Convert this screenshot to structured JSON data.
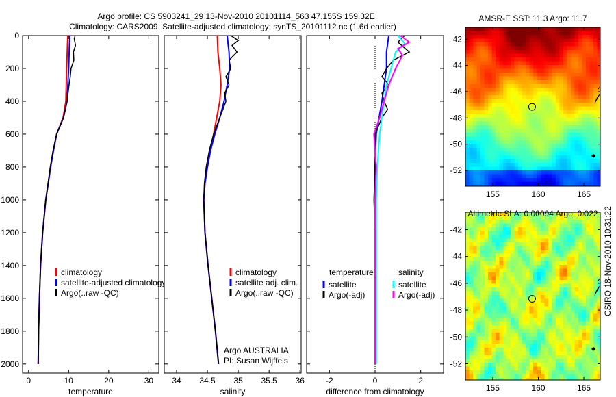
{
  "title": {
    "line1": "Argo profile: CS 5903241_29 13-Nov-2010 20101114_563 47.155S 159.32E",
    "line2": "Climatology: CARS2009. Satellite-adjusted climatology: synTS_20101112.nc (1.6d earlier)"
  },
  "side_label": "CSIRO 18-Nov-2010 10:31:22",
  "chart_data": [
    {
      "type": "line",
      "xlabel": "temperature",
      "xlim": [
        -1.5,
        32.5
      ],
      "ylim": [
        2055,
        0
      ],
      "xticks": [
        "0",
        "10",
        "20",
        "30"
      ],
      "xtick_values": [
        0,
        10,
        20,
        30
      ],
      "yticks": [
        "0",
        "200",
        "400",
        "600",
        "800",
        "1000",
        "1200",
        "1400",
        "1600",
        "1800",
        "2000"
      ],
      "legend": [
        "climatology",
        "satellite-adjusted climatology",
        "Argo(..raw -QC)"
      ],
      "series": [
        {
          "name": "climatology",
          "color": "#ff0000",
          "depth": [
            0,
            50,
            200,
            400,
            500,
            600,
            700,
            800,
            1000,
            1200,
            1400,
            1600,
            1800,
            2000
          ],
          "values": [
            9.8,
            9.7,
            9.5,
            9.3,
            8.6,
            7.0,
            6.2,
            5.5,
            4.3,
            3.5,
            3.0,
            2.7,
            2.5,
            2.4
          ]
        },
        {
          "name": "satellite-adjusted climatology",
          "color": "#0000ff",
          "depth": [
            0,
            50,
            200,
            400,
            500,
            600,
            700,
            800,
            1000,
            1200,
            1400,
            1600,
            1800,
            2000
          ],
          "values": [
            10.3,
            10.2,
            10.0,
            9.6,
            8.7,
            7.0,
            6.2,
            5.5,
            4.3,
            3.5,
            3.0,
            2.7,
            2.5,
            2.4
          ]
        },
        {
          "name": "Argo(..raw -QC)",
          "color": "#000000",
          "depth": [
            0,
            20,
            60,
            100,
            150,
            200,
            250,
            300,
            400,
            500,
            600,
            700,
            800,
            1000,
            1200,
            1400,
            1600,
            1800,
            2000
          ],
          "values": [
            11.6,
            11.4,
            11.7,
            11.2,
            11.3,
            10.6,
            10.4,
            10.1,
            9.6,
            8.7,
            7.0,
            6.1,
            5.4,
            4.3,
            3.5,
            3.0,
            2.7,
            2.5,
            2.4
          ]
        }
      ]
    },
    {
      "type": "line",
      "xlabel": "salinity",
      "xlim": [
        33.8,
        36.02
      ],
      "ylim": [
        2055,
        0
      ],
      "xticks": [
        "34",
        "34.5",
        "35",
        "35.5",
        "36"
      ],
      "xtick_values": [
        34,
        34.5,
        35,
        35.5,
        36
      ],
      "legend": [
        "climatology",
        "satellite adj. clim.",
        "Argo(..raw -QC)"
      ],
      "annotation": [
        "Argo AUSTRALIA",
        "PI: Susan Wijffels"
      ],
      "series": [
        {
          "name": "climatology",
          "color": "#ff0000",
          "depth": [
            0,
            100,
            200,
            300,
            400,
            500,
            600,
            700,
            800,
            900,
            1000,
            1200,
            1400,
            1600,
            1800,
            2000
          ],
          "values": [
            34.66,
            34.67,
            34.7,
            34.72,
            34.7,
            34.65,
            34.6,
            34.55,
            34.5,
            34.46,
            34.44,
            34.46,
            34.51,
            34.57,
            34.63,
            34.68
          ]
        },
        {
          "name": "satellite adj. clim.",
          "color": "#0000ff",
          "depth": [
            0,
            100,
            200,
            300,
            400,
            500,
            600,
            700,
            800,
            900,
            1000,
            1200,
            1400,
            1600,
            1800,
            2000
          ],
          "values": [
            34.82,
            34.85,
            34.86,
            34.82,
            34.77,
            34.7,
            34.62,
            34.55,
            34.5,
            34.46,
            34.44,
            34.46,
            34.51,
            34.57,
            34.63,
            34.68
          ]
        },
        {
          "name": "Argo(..raw -QC)",
          "color": "#000000",
          "depth": [
            0,
            30,
            60,
            100,
            150,
            200,
            250,
            300,
            350,
            400,
            500,
            600,
            700,
            800,
            900,
            1000,
            1200,
            1400,
            1600,
            1800,
            2000
          ],
          "values": [
            34.88,
            35.0,
            34.9,
            34.98,
            34.85,
            34.88,
            34.8,
            34.85,
            34.78,
            34.8,
            34.7,
            34.6,
            34.53,
            34.48,
            34.45,
            34.44,
            34.46,
            34.51,
            34.57,
            34.63,
            34.68
          ]
        }
      ]
    },
    {
      "type": "line",
      "xlabel": "difference from climatology",
      "xlim": [
        -3,
        3
      ],
      "ylim": [
        2055,
        0
      ],
      "xticks": [
        "-2",
        "0",
        "2"
      ],
      "xtick_values": [
        -2,
        0,
        2
      ],
      "legend_temperature_title": "temperature",
      "legend_salinity_title": "salinity",
      "legend": [
        "satellite",
        "Argo(-adj)",
        "satellite",
        "Argo(-adj)"
      ],
      "series": [
        {
          "name": "temperature satellite",
          "color": "#0000ff",
          "depth": [
            0,
            100,
            200,
            400,
            600,
            800,
            1000,
            1200,
            1600,
            2000
          ],
          "values": [
            0.6,
            0.5,
            0.5,
            0.3,
            0.05,
            0,
            0,
            0,
            0,
            0
          ]
        },
        {
          "name": "temperature Argo(-adj)",
          "color": "#000000",
          "depth": [
            0,
            40,
            100,
            150,
            200,
            250,
            300,
            350,
            400,
            450,
            500,
            600,
            800,
            1000,
            1200,
            1600,
            2000
          ],
          "values": [
            1.3,
            1.0,
            1.5,
            0.8,
            0.5,
            0.3,
            0.6,
            0.3,
            0.4,
            0.55,
            0.3,
            0.0,
            0,
            -0.05,
            0,
            0,
            0
          ]
        },
        {
          "name": "salinity satellite",
          "color": "#00ffff",
          "depth": [
            0,
            50,
            100,
            200,
            300,
            400,
            500,
            600,
            800,
            1000,
            1200,
            1600,
            2000
          ],
          "values": [
            1.0,
            1.3,
            0.9,
            0.7,
            0.5,
            0.4,
            0.3,
            0.2,
            0.1,
            0.05,
            0.05,
            0.05,
            0.05
          ]
        },
        {
          "name": "salinity Argo(-adj)",
          "color": "#ff00ff",
          "depth": [
            0,
            40,
            80,
            120,
            200,
            300,
            400,
            500,
            600,
            800,
            1000,
            1200,
            1600,
            2000
          ],
          "values": [
            1.1,
            1.5,
            1.0,
            1.2,
            0.9,
            0.6,
            0.4,
            0.2,
            -0.05,
            0.05,
            0,
            0,
            0,
            0
          ]
        }
      ]
    },
    {
      "type": "heatmap",
      "title": "AMSR-E SST: 11.3 Argo: 11.7",
      "xlim": [
        152,
        166.8
      ],
      "ylim": [
        -53.2,
        -41.1
      ],
      "xticks": [
        "155",
        "160",
        "165"
      ],
      "xtick_values": [
        155,
        160,
        165
      ],
      "yticks": [
        "-42",
        "-44",
        "-46",
        "-48",
        "-50",
        "-52"
      ],
      "ytick_values": [
        -42,
        -44,
        -46,
        -48,
        -50,
        -52
      ],
      "marker": {
        "lon": 159.32,
        "lat": -47.155
      }
    },
    {
      "type": "heatmap",
      "title": "Altimetric SLA: 0.00094 Argo: 0.022",
      "xlim": [
        152,
        166.8
      ],
      "ylim": [
        -53.2,
        -40.7
      ],
      "xticks": [
        "155",
        "160",
        "165"
      ],
      "xtick_values": [
        155,
        160,
        165
      ],
      "yticks": [
        "-42",
        "-44",
        "-46",
        "-48",
        "-50",
        "-52"
      ],
      "ytick_values": [
        -42,
        -44,
        -46,
        -48,
        -50,
        -52
      ],
      "marker": {
        "lon": 159.32,
        "lat": -47.155
      }
    }
  ]
}
